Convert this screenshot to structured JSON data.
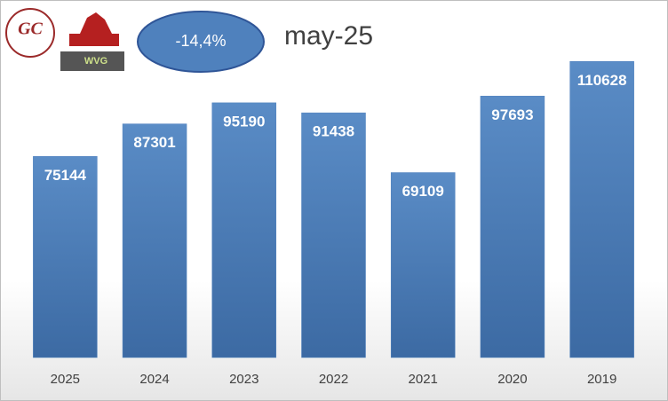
{
  "chart_data": {
    "type": "bar",
    "title": "may-25",
    "annotation": "-14,4%",
    "logo_texts": [
      "GC",
      "WVG"
    ],
    "categories": [
      "2025",
      "2024",
      "2023",
      "2022",
      "2021",
      "2020",
      "2019"
    ],
    "values": [
      75144,
      87301,
      95190,
      91438,
      69109,
      97693,
      110628
    ],
    "color": "#4f81bd",
    "ylim": [
      0,
      120000
    ]
  }
}
